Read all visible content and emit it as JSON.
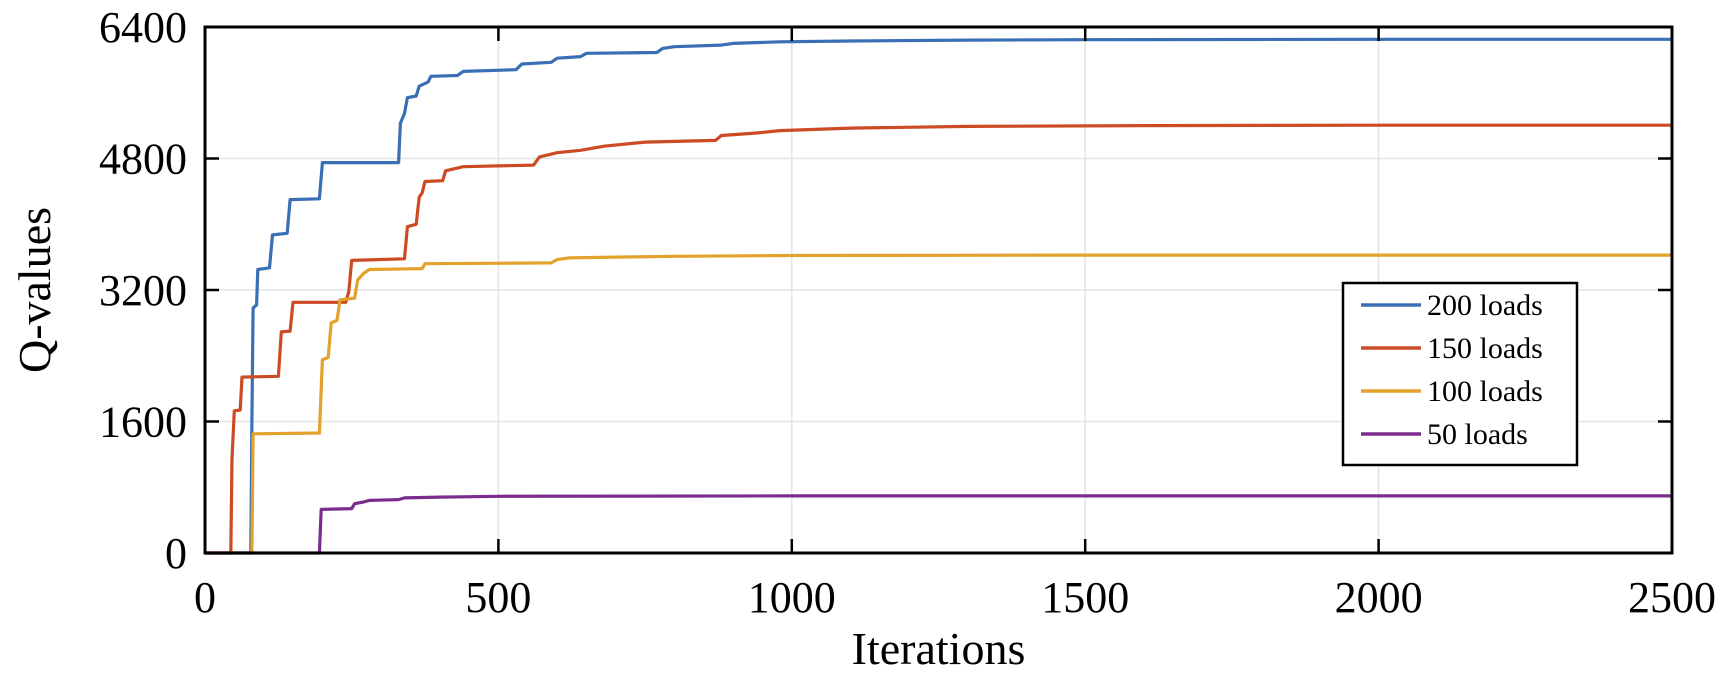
{
  "chart_data": {
    "type": "line",
    "title": "",
    "xlabel": "Iterations",
    "ylabel": "Q-values",
    "xlim": [
      0,
      2500
    ],
    "ylim": [
      0,
      6400
    ],
    "xticks": [
      0,
      500,
      1000,
      1500,
      2000,
      2500
    ],
    "yticks": [
      0,
      1600,
      3200,
      4800,
      6400
    ],
    "grid": true,
    "legend_position": "right-middle",
    "series": [
      {
        "name": "200 loads",
        "color": "#3A6FB5",
        "points": [
          [
            0,
            0
          ],
          [
            78,
            0
          ],
          [
            80,
            1600
          ],
          [
            82,
            2980
          ],
          [
            88,
            3020
          ],
          [
            90,
            3450
          ],
          [
            110,
            3470
          ],
          [
            115,
            3870
          ],
          [
            140,
            3890
          ],
          [
            145,
            4300
          ],
          [
            195,
            4310
          ],
          [
            200,
            4750
          ],
          [
            330,
            4750
          ],
          [
            333,
            5230
          ],
          [
            340,
            5350
          ],
          [
            345,
            5540
          ],
          [
            360,
            5560
          ],
          [
            365,
            5680
          ],
          [
            380,
            5730
          ],
          [
            385,
            5800
          ],
          [
            430,
            5810
          ],
          [
            440,
            5860
          ],
          [
            530,
            5880
          ],
          [
            540,
            5950
          ],
          [
            590,
            5970
          ],
          [
            600,
            6020
          ],
          [
            640,
            6040
          ],
          [
            650,
            6080
          ],
          [
            770,
            6090
          ],
          [
            780,
            6140
          ],
          [
            800,
            6160
          ],
          [
            880,
            6180
          ],
          [
            900,
            6200
          ],
          [
            980,
            6220
          ],
          [
            1100,
            6230
          ],
          [
            1300,
            6240
          ],
          [
            1500,
            6245
          ],
          [
            2000,
            6250
          ],
          [
            2500,
            6250
          ]
        ]
      },
      {
        "name": "150 loads",
        "color": "#CC4A24",
        "points": [
          [
            0,
            0
          ],
          [
            44,
            0
          ],
          [
            46,
            1150
          ],
          [
            50,
            1730
          ],
          [
            60,
            1740
          ],
          [
            63,
            2140
          ],
          [
            125,
            2150
          ],
          [
            130,
            2690
          ],
          [
            145,
            2700
          ],
          [
            150,
            3050
          ],
          [
            240,
            3050
          ],
          [
            245,
            3180
          ],
          [
            250,
            3560
          ],
          [
            340,
            3580
          ],
          [
            345,
            3970
          ],
          [
            360,
            4000
          ],
          [
            365,
            4330
          ],
          [
            370,
            4380
          ],
          [
            375,
            4520
          ],
          [
            405,
            4530
          ],
          [
            410,
            4650
          ],
          [
            440,
            4700
          ],
          [
            560,
            4720
          ],
          [
            570,
            4820
          ],
          [
            600,
            4870
          ],
          [
            640,
            4900
          ],
          [
            680,
            4950
          ],
          [
            750,
            5000
          ],
          [
            870,
            5020
          ],
          [
            880,
            5080
          ],
          [
            940,
            5110
          ],
          [
            980,
            5140
          ],
          [
            1100,
            5170
          ],
          [
            1300,
            5190
          ],
          [
            1600,
            5200
          ],
          [
            2000,
            5205
          ],
          [
            2500,
            5205
          ]
        ]
      },
      {
        "name": "100 loads",
        "color": "#E2A22B",
        "points": [
          [
            0,
            0
          ],
          [
            80,
            0
          ],
          [
            82,
            1450
          ],
          [
            195,
            1460
          ],
          [
            200,
            2350
          ],
          [
            210,
            2380
          ],
          [
            215,
            2800
          ],
          [
            225,
            2830
          ],
          [
            230,
            3080
          ],
          [
            255,
            3100
          ],
          [
            260,
            3320
          ],
          [
            270,
            3400
          ],
          [
            280,
            3450
          ],
          [
            370,
            3460
          ],
          [
            375,
            3520
          ],
          [
            590,
            3530
          ],
          [
            600,
            3570
          ],
          [
            620,
            3590
          ],
          [
            700,
            3600
          ],
          [
            800,
            3610
          ],
          [
            1000,
            3620
          ],
          [
            1500,
            3625
          ],
          [
            2500,
            3625
          ]
        ]
      },
      {
        "name": "50 loads",
        "color": "#7B2D8E",
        "points": [
          [
            0,
            0
          ],
          [
            195,
            0
          ],
          [
            198,
            530
          ],
          [
            250,
            540
          ],
          [
            255,
            600
          ],
          [
            270,
            620
          ],
          [
            280,
            640
          ],
          [
            330,
            650
          ],
          [
            340,
            670
          ],
          [
            400,
            680
          ],
          [
            500,
            690
          ],
          [
            1000,
            695
          ],
          [
            1500,
            695
          ],
          [
            2500,
            695
          ]
        ]
      }
    ]
  }
}
